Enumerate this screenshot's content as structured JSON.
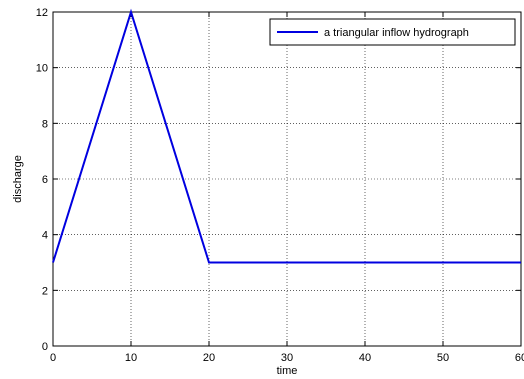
{
  "chart_data": {
    "type": "line",
    "xlabel": "time",
    "ylabel": "discharge",
    "xlim": [
      0,
      60
    ],
    "ylim": [
      0,
      12
    ],
    "xticks": [
      0,
      10,
      20,
      30,
      40,
      50,
      60
    ],
    "yticks": [
      0,
      2,
      4,
      6,
      8,
      10,
      12
    ],
    "grid": true,
    "legend_position": "top-right",
    "series": [
      {
        "name": "a triangular inflow hydrograph",
        "color": "#0000e0",
        "x": [
          0,
          10,
          20,
          60
        ],
        "y": [
          3,
          12,
          3,
          3
        ]
      }
    ]
  }
}
